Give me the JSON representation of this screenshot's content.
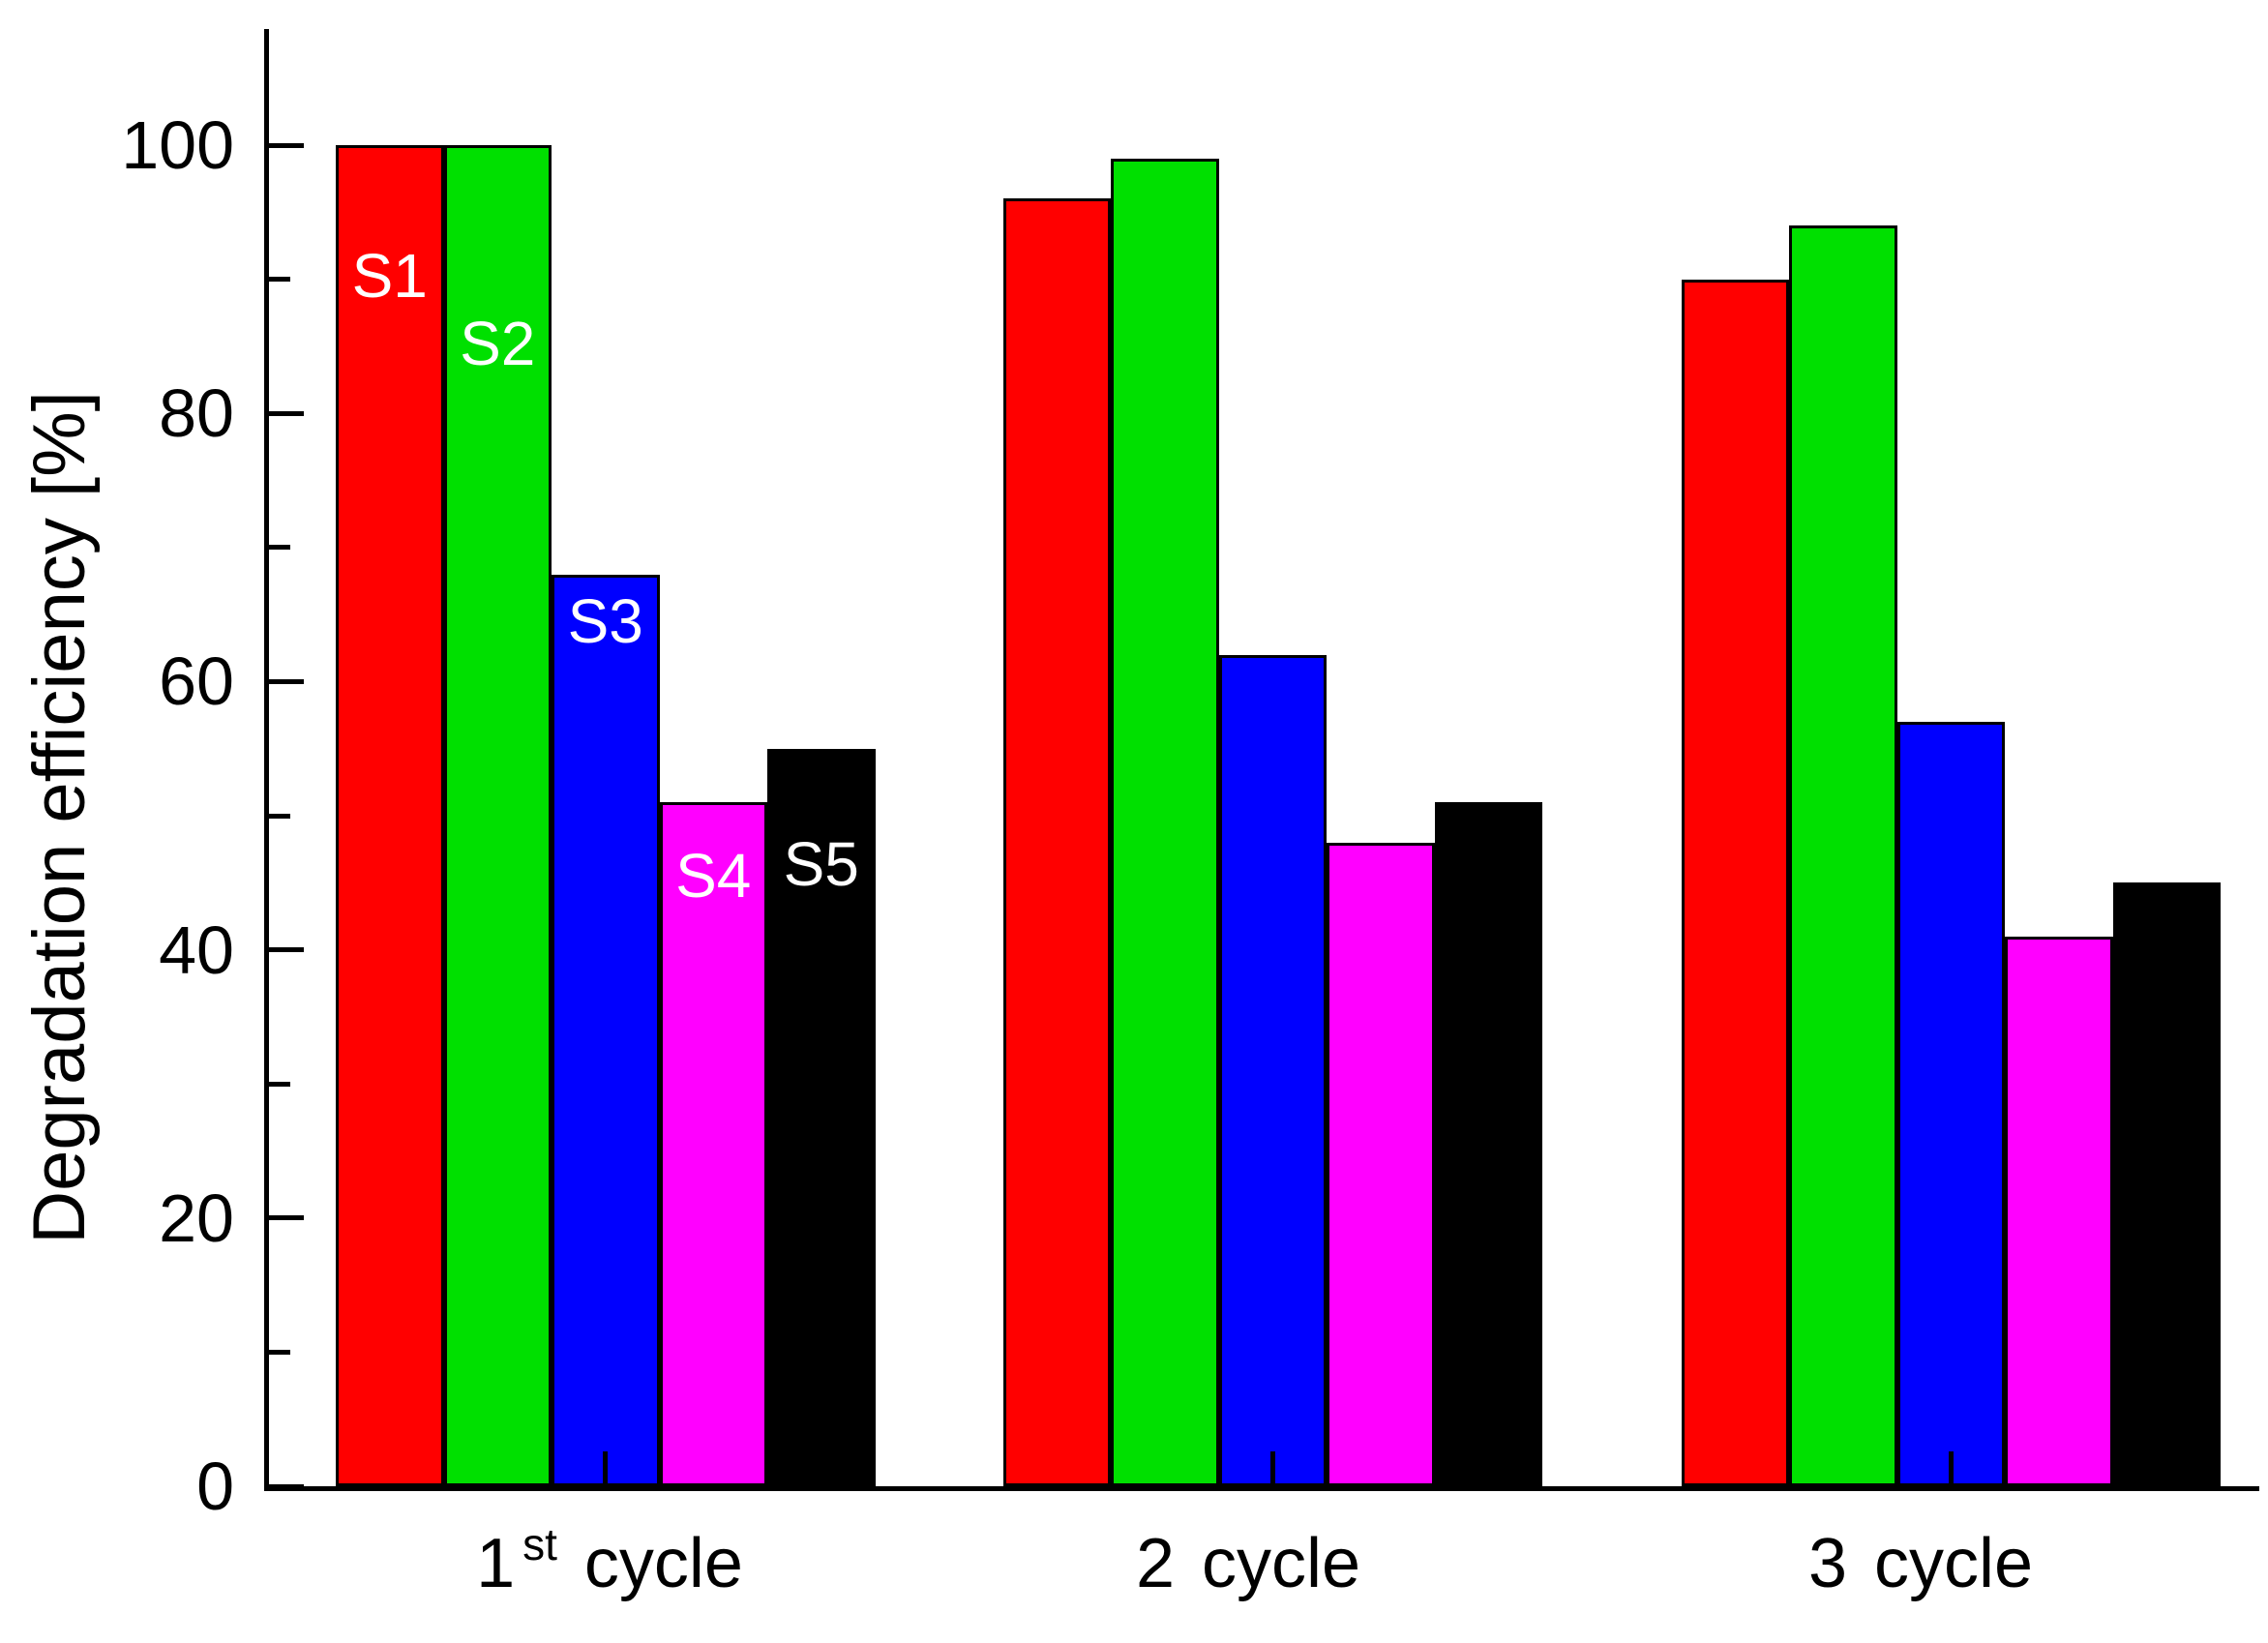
{
  "chart_data": {
    "type": "bar",
    "title": "",
    "ylabel": "Degradation efficiency [%]",
    "xlabel": "",
    "ylim": [
      0,
      108
    ],
    "yticks_major": [
      100,
      80,
      60,
      40,
      20,
      0
    ],
    "yticks_minor": [
      90,
      70,
      50,
      30,
      10
    ],
    "grid": false,
    "legend_position": "in-bar labels on first group",
    "axis_color": "#000000",
    "bar_outline_color": "#000000",
    "bar_label_color": "#ffffff",
    "categories": [
      {
        "num": "1",
        "sup": "st",
        "rest": "cycle"
      },
      {
        "num": "2",
        "sup": "",
        "rest": "cycle"
      },
      {
        "num": "3",
        "sup": "",
        "rest": "cycle"
      }
    ],
    "series": [
      {
        "name": "S1",
        "color": "#ff0000",
        "values": [
          100,
          96,
          90
        ]
      },
      {
        "name": "S2",
        "color": "#00e000",
        "values": [
          100,
          99,
          94
        ]
      },
      {
        "name": "S3",
        "color": "#0000ff",
        "values": [
          68,
          62,
          57
        ]
      },
      {
        "name": "S4",
        "color": "#ff00ff",
        "values": [
          51,
          48,
          41
        ]
      },
      {
        "name": "S5",
        "color": "#000000",
        "values": [
          55,
          51,
          45
        ]
      }
    ]
  }
}
